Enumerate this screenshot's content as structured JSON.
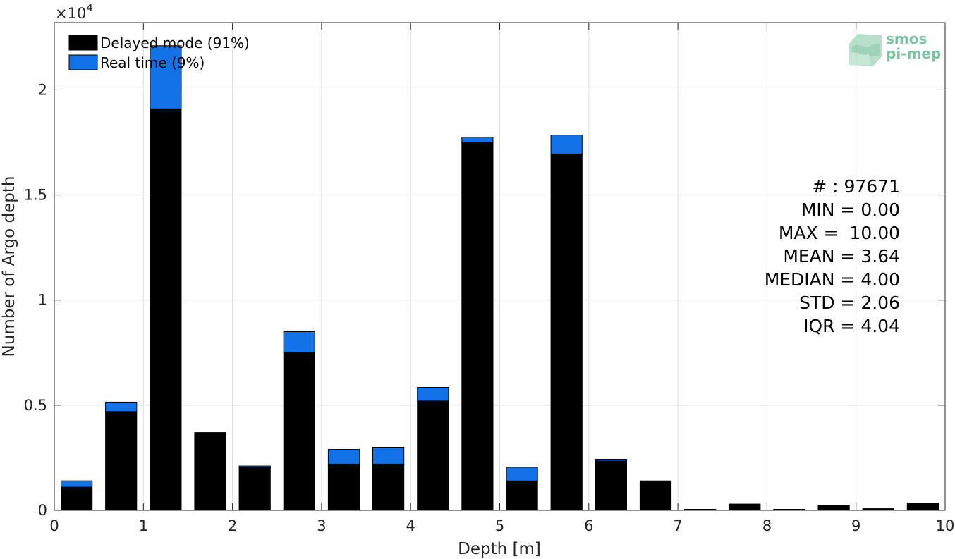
{
  "chart_data": {
    "type": "bar",
    "stacked": true,
    "xlabel": "Depth [m]",
    "ylabel": "Number of Argo depth",
    "y_exponent_label": "×10",
    "y_exponent_power": "4",
    "xlim": [
      0,
      10
    ],
    "ylim": [
      0,
      23200
    ],
    "x_ticks": [
      0,
      1,
      2,
      3,
      4,
      5,
      6,
      7,
      8,
      9,
      10
    ],
    "x_tick_labels": [
      "0",
      "1",
      "2",
      "3",
      "4",
      "5",
      "6",
      "7",
      "8",
      "9",
      "10"
    ],
    "y_ticks": [
      0,
      5000,
      10000,
      15000,
      20000
    ],
    "y_tick_labels": [
      "0",
      "0.5",
      "1",
      "1.5",
      "2"
    ],
    "grid": true,
    "legend_position": "top-left",
    "bin_width": 0.5,
    "bar_width": 0.35,
    "x": [
      0.25,
      0.75,
      1.25,
      1.75,
      2.25,
      2.75,
      3.25,
      3.75,
      4.25,
      4.75,
      5.25,
      5.75,
      6.25,
      6.75,
      7.25,
      7.75,
      8.25,
      8.75,
      9.25,
      9.75
    ],
    "series": [
      {
        "name": "Delayed mode (91%)",
        "color": "#000000",
        "values": [
          1100,
          4700,
          19100,
          3700,
          2050,
          7500,
          2200,
          2200,
          5200,
          17500,
          1400,
          16950,
          2350,
          1400,
          50,
          300,
          50,
          250,
          80,
          350
        ]
      },
      {
        "name": "Real time (9%)",
        "color": "#1372e8",
        "values": [
          300,
          450,
          3000,
          0,
          60,
          1000,
          700,
          800,
          650,
          250,
          650,
          900,
          80,
          0,
          0,
          0,
          0,
          0,
          0,
          0
        ]
      }
    ],
    "stats": [
      "# : 97671",
      "MIN = 0.00",
      "MAX =  10.00",
      "MEAN = 3.64",
      "MEDIAN = 4.00",
      "STD = 2.06",
      "IQR = 4.04"
    ],
    "logo": {
      "line1": "smos",
      "line2": "pi-mep",
      "color": "#7fc4a0"
    }
  }
}
